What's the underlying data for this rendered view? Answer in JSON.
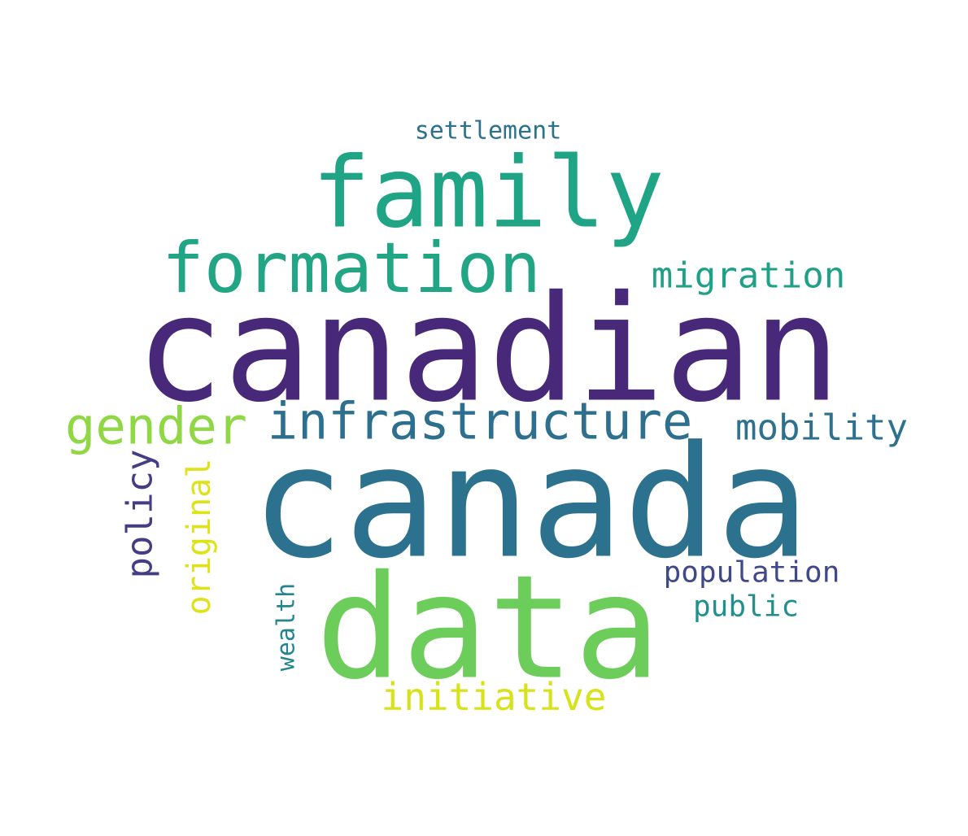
{
  "word_cloud": {
    "background": "#ffffff",
    "words": [
      {
        "text": "canadian",
        "color": "#482878",
        "weight": 1.0
      },
      {
        "text": "canada",
        "color": "#2c728e",
        "weight": 0.97
      },
      {
        "text": "data",
        "color": "#6ccd5a",
        "weight": 0.9
      },
      {
        "text": "family",
        "color": "#20a486",
        "weight": 0.62
      },
      {
        "text": "formation",
        "color": "#21a585",
        "weight": 0.42
      },
      {
        "text": "infrastructure",
        "color": "#2d6f8e",
        "weight": 0.32
      },
      {
        "text": "gender",
        "color": "#8fd744",
        "weight": 0.32
      },
      {
        "text": "migration",
        "color": "#1fa188",
        "weight": 0.2
      },
      {
        "text": "mobility",
        "color": "#2d718e",
        "weight": 0.2
      },
      {
        "text": "policy",
        "color": "#433d84",
        "weight": 0.2
      },
      {
        "text": "original",
        "color": "#dde318",
        "weight": 0.2
      },
      {
        "text": "initiative",
        "color": "#d8e219",
        "weight": 0.2
      },
      {
        "text": "population",
        "color": "#3f4889",
        "weight": 0.16
      },
      {
        "text": "public",
        "color": "#218f8d",
        "weight": 0.16
      },
      {
        "text": "wealth",
        "color": "#25858e",
        "weight": 0.14
      },
      {
        "text": "settlement",
        "color": "#2c728e",
        "weight": 0.14
      }
    ]
  }
}
